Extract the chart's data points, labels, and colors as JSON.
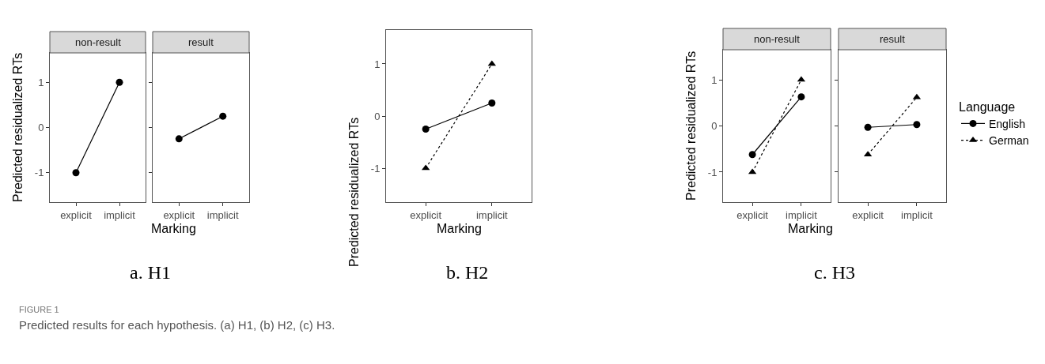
{
  "chart_data": [
    {
      "type": "line",
      "title": "non-result",
      "ylabel": "Predicted residualized RTs",
      "xlabel": "Marking",
      "categories": [
        "explicit",
        "implicit"
      ],
      "ylim": [
        -1.65,
        1.65
      ],
      "yticks": [
        -1,
        0,
        1
      ],
      "series": [
        {
          "color": "#000000",
          "marker": "circle",
          "line_style": "solid",
          "values": [
            -1,
            1
          ]
        }
      ],
      "annotations": [
        "a. H1",
        "FIGURE 1",
        "Predicted results for each hypothesis. (a) H1, (b) H2, (c) H3."
      ]
    },
    {
      "type": "line",
      "title": "result",
      "categories": [
        "explicit",
        "implicit"
      ],
      "ylim": [
        -1.65,
        1.65
      ],
      "yticks": [
        -1,
        0,
        1
      ],
      "tick_labels": "x",
      "series": [
        {
          "color": "#000000",
          "marker": "circle",
          "line_style": "solid",
          "values": [
            -0.25,
            0.25
          ]
        }
      ]
    },
    {
      "type": "line",
      "ylabel": "Predicted residualized RTs",
      "xlabel": "Marking",
      "categories": [
        "explicit",
        "implicit"
      ],
      "ylim": [
        -1.65,
        1.65
      ],
      "yticks": [
        -1,
        0,
        1
      ],
      "series": [
        {
          "color": "#000000",
          "marker": "circle",
          "line_style": "solid",
          "values": [
            -0.25,
            0.25
          ]
        },
        {
          "color": "#000000",
          "marker": "triangle",
          "line_style": "dotted",
          "values": [
            -1,
            1
          ]
        }
      ],
      "annotations": [
        "b. H2"
      ]
    },
    {
      "type": "line",
      "title": "non-result",
      "ylabel": "Predicted residualized RTs",
      "xlabel": "Marking",
      "categories": [
        "explicit",
        "implicit"
      ],
      "ylim": [
        -1.65,
        1.65
      ],
      "yticks": [
        -1,
        0,
        1
      ],
      "legend": "right",
      "legend_title": "Language",
      "series": [
        {
          "name": "English",
          "color": "#000000",
          "marker": "circle",
          "line_style": "solid",
          "values": [
            -0.62,
            0.63
          ]
        },
        {
          "name": "German",
          "color": "#000000",
          "marker": "triangle",
          "line_style": "dotted",
          "values": [
            -1,
            1
          ]
        }
      ],
      "annotations": [
        "c. H3"
      ]
    },
    {
      "type": "line",
      "title": "result",
      "categories": [
        "explicit",
        "implicit"
      ],
      "ylim": [
        -1.65,
        1.65
      ],
      "yticks": [
        -1,
        0,
        1
      ],
      "tick_labels": "x",
      "series": [
        {
          "color": "#000000",
          "marker": "circle",
          "line_style": "solid",
          "values": [
            -0.03,
            0.03
          ]
        },
        {
          "color": "#000000",
          "marker": "triangle",
          "line_style": "dotted",
          "values": [
            -0.62,
            0.62
          ]
        }
      ]
    }
  ]
}
